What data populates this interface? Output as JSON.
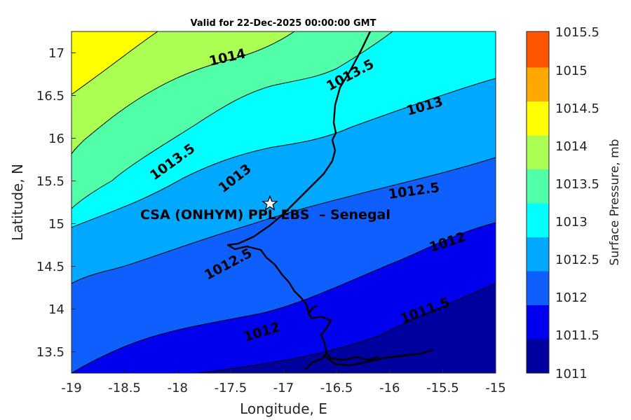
{
  "title": "Valid for 22-Dec-2025 00:00:00 GMT",
  "chart_data": {
    "type": "contour-map",
    "title": "Valid for 22-Dec-2025 00:00:00 GMT",
    "xlabel": "Longitude, E",
    "ylabel": "Latitude, N",
    "xlim": [
      -19,
      -15
    ],
    "ylim": [
      13.25,
      17.25
    ],
    "xticks": [
      "-19",
      "-18.5",
      "-18",
      "-17.5",
      "-17",
      "-16.5",
      "-16",
      "-15.5",
      "-15"
    ],
    "yticks": [
      "13.5",
      "14",
      "14.5",
      "15",
      "15.5",
      "16",
      "16.5",
      "17"
    ],
    "colorbar": {
      "label": "Surface Pressure, mb",
      "levels": [
        "1011",
        "1011.5",
        "1012",
        "1012.5",
        "1013",
        "1013.5",
        "1014",
        "1014.5",
        "1015",
        "1015.5"
      ],
      "colors": [
        "#00009f",
        "#0000ef",
        "#0f5fff",
        "#00a8ff",
        "#00ffff",
        "#50ffa8",
        "#aaff52",
        "#ffff00",
        "#ffa800",
        "#ff5500"
      ]
    },
    "contour_labels": [
      "1014",
      "1013.5",
      "1013",
      "1013.5",
      "1013",
      "1012.5",
      "1012",
      "1012.5",
      "1012",
      "1011.5"
    ],
    "station": {
      "name": "CSA (ONHYM) PPL EBS  – Senegal",
      "lon": -17.1,
      "lat": 15.22,
      "marker": "star"
    }
  }
}
